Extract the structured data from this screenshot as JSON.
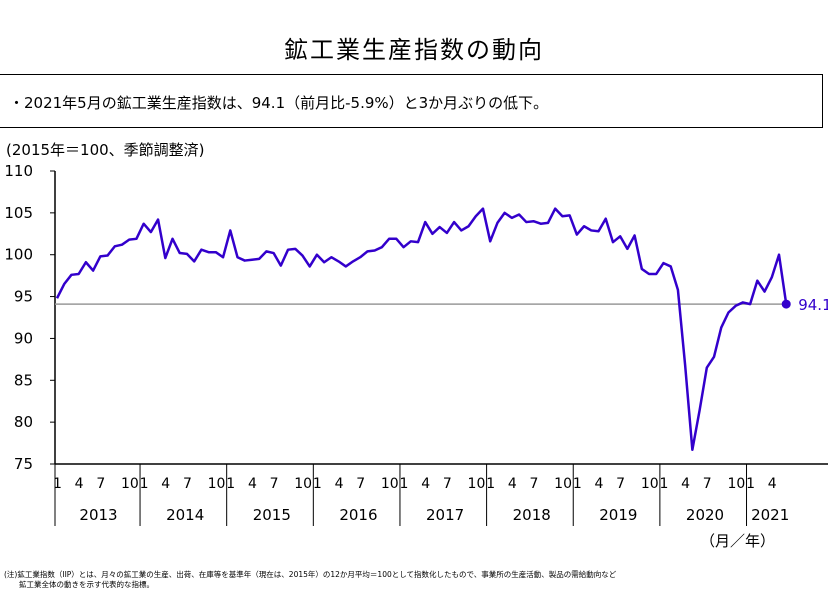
{
  "title": "鉱工業生産指数の動向",
  "summary": "・2021年5月の鉱工業生産指数は、94.1（前月比-5.9%）と3か月ぶりの低下。",
  "unit_label": "(2015年＝100、季節調整済)",
  "x_unit": "（月／年）",
  "footnote": "(注)鉱工業指数（IIP）とは、月々の鉱工業の生産、出荷、在庫等を基準年（現在は、2015年）の12か月平均＝100として指数化したもので、事業所の生産活動、製品の需給動向など\n　　鉱工業全体の動きを示す代表的な指標。",
  "colors": {
    "line": "#3300cc",
    "reference": "#999999",
    "axis": "#000000"
  },
  "chart_data": {
    "type": "line",
    "title": "鉱工業生産指数の動向",
    "ylabel": "(2015年＝100、季節調整済)",
    "xlabel": "（月／年）",
    "ylim": [
      75,
      110
    ],
    "yticks": [
      75,
      80,
      85,
      90,
      95,
      100,
      105,
      110
    ],
    "years": [
      "2013",
      "2014",
      "2015",
      "2016",
      "2017",
      "2018",
      "2019",
      "2020",
      "2021"
    ],
    "month_ticks": [
      "1",
      "4",
      "7",
      "10"
    ],
    "reference_line": 94.1,
    "end_label": "94.1",
    "grid": false,
    "series": [
      {
        "values": [
          94.8,
          96.5,
          97.6,
          97.7,
          99.1,
          98.1,
          99.8,
          99.9,
          101.0,
          101.2,
          101.8,
          101.9,
          103.7,
          102.7,
          104.2,
          99.6,
          101.9,
          100.2,
          100.1,
          99.2,
          100.6,
          100.3,
          100.3,
          99.7,
          102.9,
          99.7,
          99.3,
          99.4,
          99.5,
          100.4,
          100.2,
          98.7,
          100.6,
          100.7,
          99.9,
          98.6,
          100.0,
          99.1,
          99.7,
          99.2,
          98.6,
          99.2,
          99.7,
          100.4,
          100.5,
          100.9,
          101.9,
          101.9,
          100.9,
          101.6,
          101.5,
          103.9,
          102.5,
          103.3,
          102.6,
          103.9,
          102.9,
          103.4,
          104.6,
          105.5,
          101.6,
          103.8,
          105.0,
          104.4,
          104.8,
          103.9,
          104.0,
          103.7,
          103.8,
          105.5,
          104.6,
          104.7,
          102.4,
          103.4,
          102.9,
          102.8,
          104.3,
          101.5,
          102.2,
          100.7,
          102.3,
          98.3,
          97.7,
          97.7,
          99.0,
          98.6,
          95.8,
          86.8,
          76.7,
          81.4,
          86.5,
          87.8,
          91.3,
          93.1,
          93.9,
          94.3,
          94.1,
          96.9,
          95.6,
          97.3,
          100.0,
          94.1
        ]
      }
    ]
  }
}
